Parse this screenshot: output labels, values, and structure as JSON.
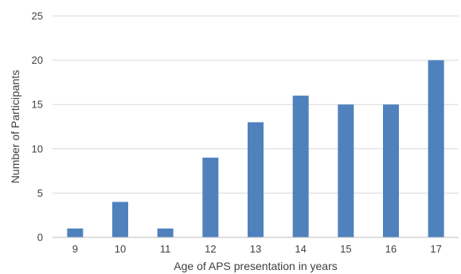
{
  "chart_data": {
    "type": "bar",
    "title": "",
    "xlabel": "Age of APS presentation in years",
    "ylabel": "Number of Participants",
    "categories": [
      "9",
      "10",
      "11",
      "12",
      "13",
      "14",
      "15",
      "16",
      "17"
    ],
    "series": [
      {
        "values": [
          1,
          4,
          1,
          9,
          13,
          16,
          15,
          15,
          20
        ]
      }
    ],
    "ylim": [
      0,
      25
    ],
    "yticks": [
      0,
      5,
      10,
      15,
      20,
      25
    ],
    "grid": true,
    "legend": "none",
    "colors": {
      "bar": "#4f81bd",
      "grid": "#d9d9d9",
      "axis": "#bfbfbf",
      "text": "#404040"
    }
  }
}
